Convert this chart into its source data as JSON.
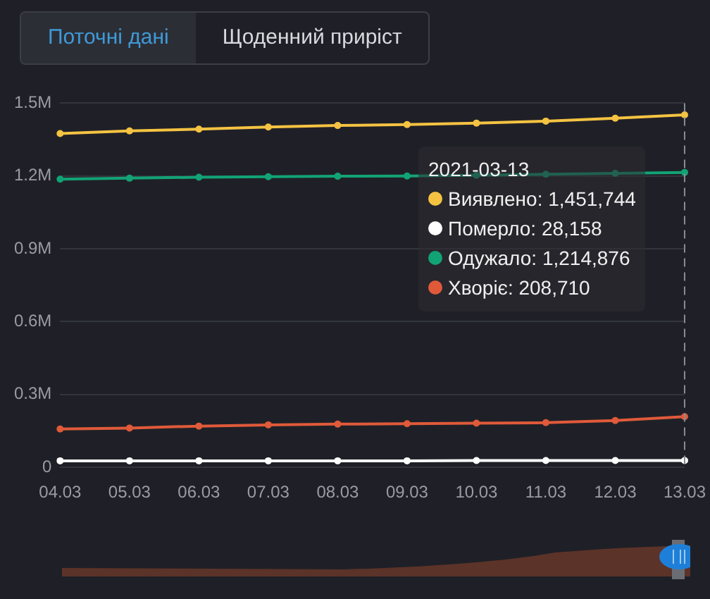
{
  "chart_data": {
    "type": "line",
    "categories": [
      "04.03",
      "05.03",
      "06.03",
      "07.03",
      "08.03",
      "09.03",
      "10.03",
      "11.03",
      "12.03",
      "13.03"
    ],
    "series": [
      {
        "name": "Виявлено:",
        "color": "#f5c342",
        "values": [
          1375000,
          1386000,
          1393000,
          1402000,
          1408000,
          1412000,
          1418000,
          1426000,
          1438000,
          1451744
        ],
        "value_labels": [
          null,
          null,
          null,
          null,
          null,
          null,
          null,
          null,
          null,
          "1,451,744"
        ]
      },
      {
        "name": "Померло:",
        "color": "#ffffff",
        "values": [
          27000,
          27000,
          27000,
          27000,
          27000,
          27000,
          28000,
          28000,
          28000,
          28158
        ],
        "value_labels": [
          null,
          null,
          null,
          null,
          null,
          null,
          null,
          null,
          null,
          "28,158"
        ]
      },
      {
        "name": "Одужало:",
        "color": "#12a375",
        "values": [
          1187000,
          1191000,
          1195000,
          1197000,
          1199000,
          1200000,
          1203000,
          1207000,
          1211000,
          1214876
        ],
        "value_labels": [
          null,
          null,
          null,
          null,
          null,
          null,
          null,
          null,
          null,
          "1,214,876"
        ]
      },
      {
        "name": "Хворіє:",
        "color": "#e05a3a",
        "values": [
          158000,
          162000,
          170000,
          175000,
          178000,
          180000,
          182000,
          184000,
          193000,
          208710
        ],
        "value_labels": [
          null,
          null,
          null,
          null,
          null,
          null,
          null,
          null,
          null,
          "208,710"
        ]
      }
    ],
    "ylim": [
      0,
      1500000
    ],
    "yticks": [
      0,
      {
        "value": 300000,
        "label": "0.3M"
      },
      {
        "value": 600000,
        "label": "0.6M"
      },
      {
        "value": 900000,
        "label": "0.9M"
      },
      {
        "value": 1200000,
        "label": "1.2M"
      },
      {
        "value": 1500000,
        "label": "1.5M"
      }
    ],
    "grid": "y",
    "legend": false,
    "marker": "circle",
    "line_style": "solid",
    "ref_lines": [
      {
        "axis": "x",
        "value": "13.03",
        "color": "#8a8c94",
        "line_style": "dashed"
      }
    ],
    "annotations": [
      "2021-03-13",
      "Поточні дані",
      "Щоденний приріст"
    ]
  }
}
